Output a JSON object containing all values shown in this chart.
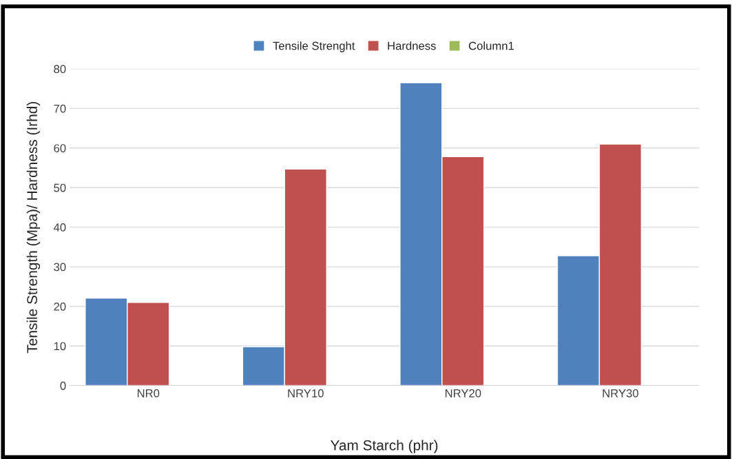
{
  "chart_data": {
    "type": "bar",
    "xlabel": "Yam Starch (phr)",
    "ylabel": "Tensile Strength (Mpa)/ Hardness (Irhd)",
    "categories": [
      "NR0",
      "NRY10",
      "NRY20",
      "NRY30"
    ],
    "series": [
      {
        "name": "Tensile Strenght",
        "color": "#4f81bd",
        "values": [
          22.1,
          9.8,
          76.5,
          32.8
        ]
      },
      {
        "name": "Hardness",
        "color": "#c0504d",
        "values": [
          21.0,
          54.7,
          57.8,
          61.0
        ]
      },
      {
        "name": "Column1",
        "color": "#9bbb59",
        "values": [
          null,
          null,
          null,
          null
        ]
      }
    ],
    "ylim": [
      0,
      80
    ],
    "yticks": [
      0,
      10,
      20,
      30,
      40,
      50,
      60,
      70,
      80
    ],
    "grid": "y",
    "legend": "top"
  }
}
